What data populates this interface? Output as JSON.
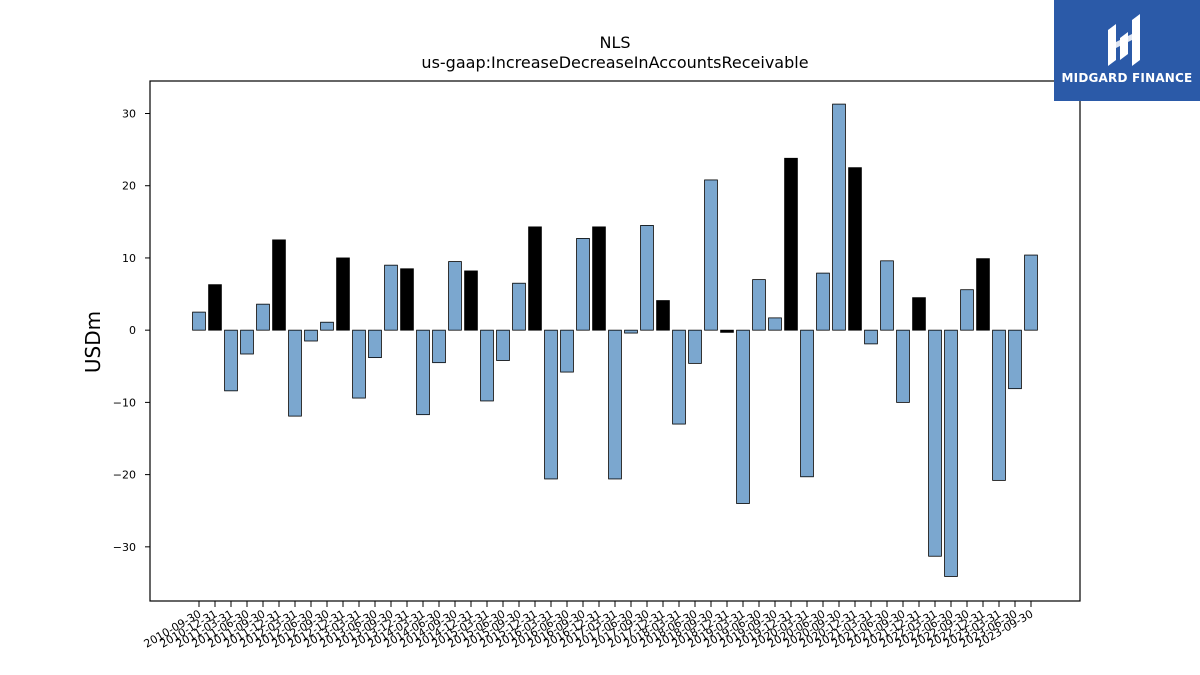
{
  "logo": {
    "text": "MIDGARD FINANCE"
  },
  "colors": {
    "positive_bar": "#7ba7cf",
    "highlight_bar": "#000000",
    "logo_bg": "#2b5aa8"
  },
  "chart_data": {
    "type": "bar",
    "title": "NLS",
    "subtitle": "us-gaap:IncreaseDecreaseInAccountsReceivable",
    "xlabel": "",
    "ylabel": "USDm",
    "ylim": [
      -37.5,
      34.5
    ],
    "yticks": [
      30,
      20,
      10,
      0,
      -10,
      -20,
      -30
    ],
    "grid": false,
    "categories": [
      "2010-09-30",
      "2010-12-31",
      "2011-03-31",
      "2011-06-30",
      "2011-09-30",
      "2011-12-31",
      "2012-03-31",
      "2012-06-30",
      "2012-09-30",
      "2012-12-31",
      "2013-03-31",
      "2013-06-30",
      "2013-09-30",
      "2013-12-31",
      "2014-03-31",
      "2014-06-30",
      "2014-09-30",
      "2014-12-31",
      "2015-03-31",
      "2015-06-30",
      "2015-09-30",
      "2015-12-31",
      "2016-03-31",
      "2016-06-30",
      "2016-09-30",
      "2016-12-31",
      "2017-03-31",
      "2017-06-30",
      "2017-09-30",
      "2017-12-31",
      "2018-03-31",
      "2018-06-30",
      "2018-09-30",
      "2018-12-31",
      "2019-03-31",
      "2019-06-30",
      "2019-09-30",
      "2019-12-31",
      "2020-03-31",
      "2020-06-30",
      "2020-09-30",
      "2020-12-31",
      "2021-03-31",
      "2021-06-30",
      "2021-09-30",
      "2021-12-31",
      "2022-03-31",
      "2022-06-30",
      "2022-09-30",
      "2022-12-31",
      "2023-03-31",
      "2023-06-30",
      "2023-09-30"
    ],
    "values": [
      2.5,
      6.3,
      -8.4,
      -3.3,
      3.6,
      12.5,
      -11.9,
      -1.5,
      1.1,
      10.0,
      -9.4,
      -3.8,
      9.0,
      8.5,
      -11.7,
      -4.5,
      9.5,
      8.2,
      -9.8,
      -4.2,
      6.5,
      14.3,
      -20.6,
      -5.8,
      12.7,
      14.3,
      -20.6,
      -0.4,
      14.5,
      4.1,
      -13.0,
      -4.6,
      20.8,
      -0.3,
      -24.0,
      7.0,
      1.7,
      23.8,
      -20.3,
      7.9,
      31.3,
      22.5,
      -1.9,
      9.6,
      -10.0,
      4.5,
      -31.3,
      -34.1,
      5.6,
      9.9,
      -20.8,
      -8.1,
      10.4
    ],
    "highlight": [
      false,
      true,
      false,
      false,
      false,
      true,
      false,
      false,
      false,
      true,
      false,
      false,
      false,
      true,
      false,
      false,
      false,
      true,
      false,
      false,
      false,
      true,
      false,
      false,
      false,
      true,
      false,
      false,
      false,
      true,
      false,
      false,
      false,
      true,
      false,
      false,
      false,
      true,
      false,
      false,
      false,
      true,
      false,
      false,
      false,
      true,
      false,
      false,
      false,
      true,
      false,
      false,
      false
    ]
  }
}
